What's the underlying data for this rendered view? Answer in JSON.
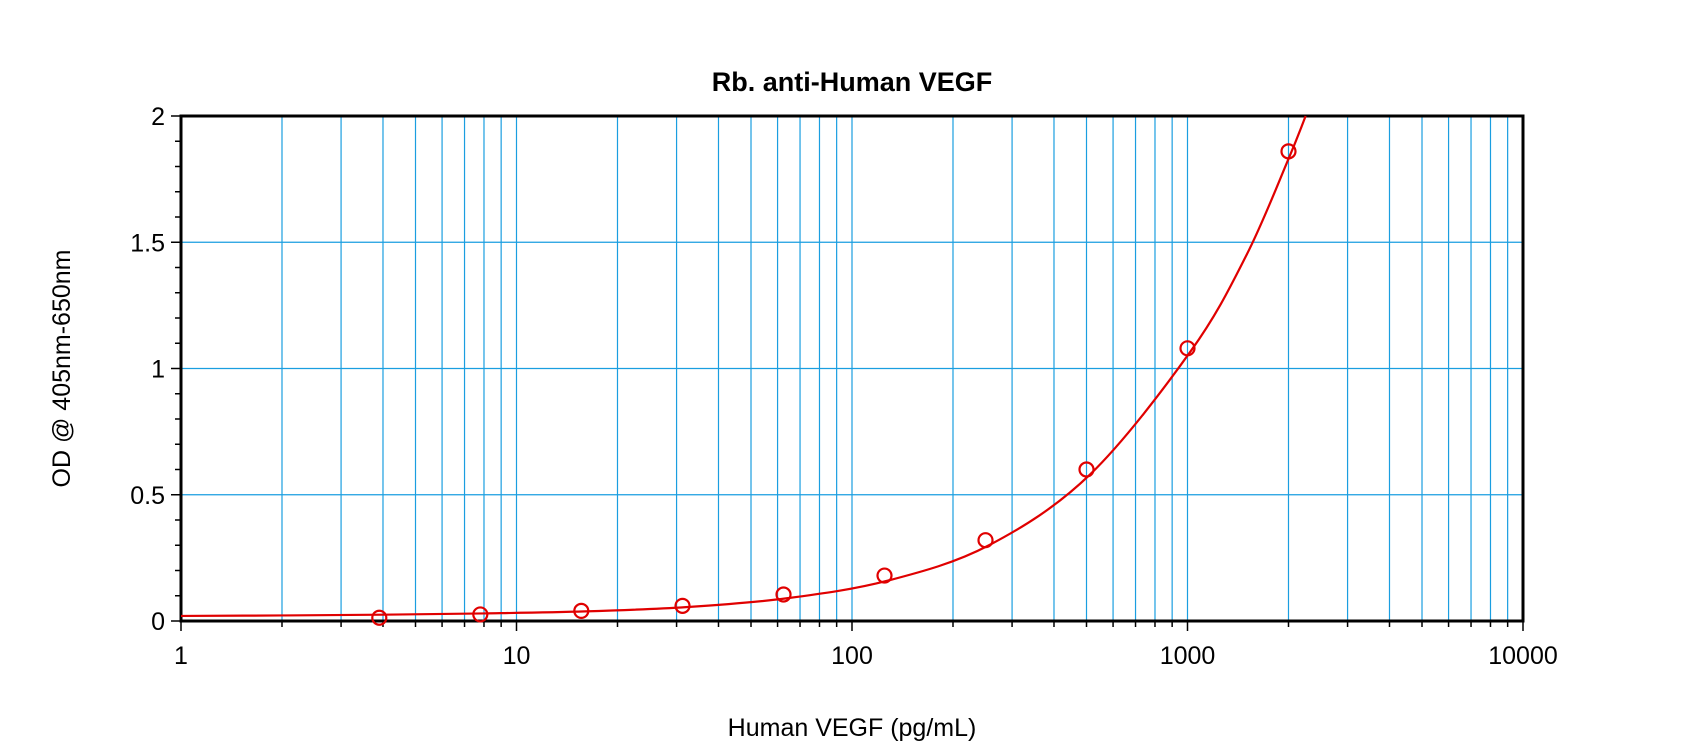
{
  "chart_data": {
    "type": "scatter",
    "title": "Rb. anti-Human VEGF",
    "xlabel": "Human VEGF (pg/mL)",
    "ylabel": "OD @ 405nm-650nm",
    "x_scale": "log",
    "xlim": [
      1,
      10000
    ],
    "ylim": [
      0,
      2
    ],
    "x_ticks": [
      {
        "value": 1,
        "label": "1"
      },
      {
        "value": 10,
        "label": "10"
      },
      {
        "value": 100,
        "label": "100"
      },
      {
        "value": 1000,
        "label": "1000"
      },
      {
        "value": 10000,
        "label": "10000"
      }
    ],
    "y_ticks": [
      {
        "value": 0,
        "label": "0"
      },
      {
        "value": 0.5,
        "label": "0.5"
      },
      {
        "value": 1,
        "label": "1"
      },
      {
        "value": 1.5,
        "label": "1.5"
      },
      {
        "value": 2,
        "label": "2"
      }
    ],
    "grid": true,
    "series": [
      {
        "style": "markers",
        "marker": "open-circle",
        "color": "#e00000",
        "x": [
          3.9,
          7.8,
          15.6,
          31.25,
          62.5,
          125,
          250,
          500,
          1000,
          2000
        ],
        "y": [
          0.013,
          0.026,
          0.04,
          0.06,
          0.105,
          0.18,
          0.32,
          0.6,
          1.08,
          1.86
        ]
      },
      {
        "style": "fitted-curve",
        "color": "#e00000",
        "x": [
          1,
          2,
          4,
          8,
          16,
          32,
          64,
          128,
          256,
          512,
          1024,
          1500,
          2000,
          2250
        ],
        "y": [
          0.02,
          0.022,
          0.025,
          0.03,
          0.038,
          0.055,
          0.09,
          0.16,
          0.3,
          0.58,
          1.07,
          1.45,
          1.83,
          2.0
        ]
      }
    ],
    "colors": {
      "grid": "#1a9ee0",
      "axes": "#000000",
      "series": "#e00000"
    }
  }
}
